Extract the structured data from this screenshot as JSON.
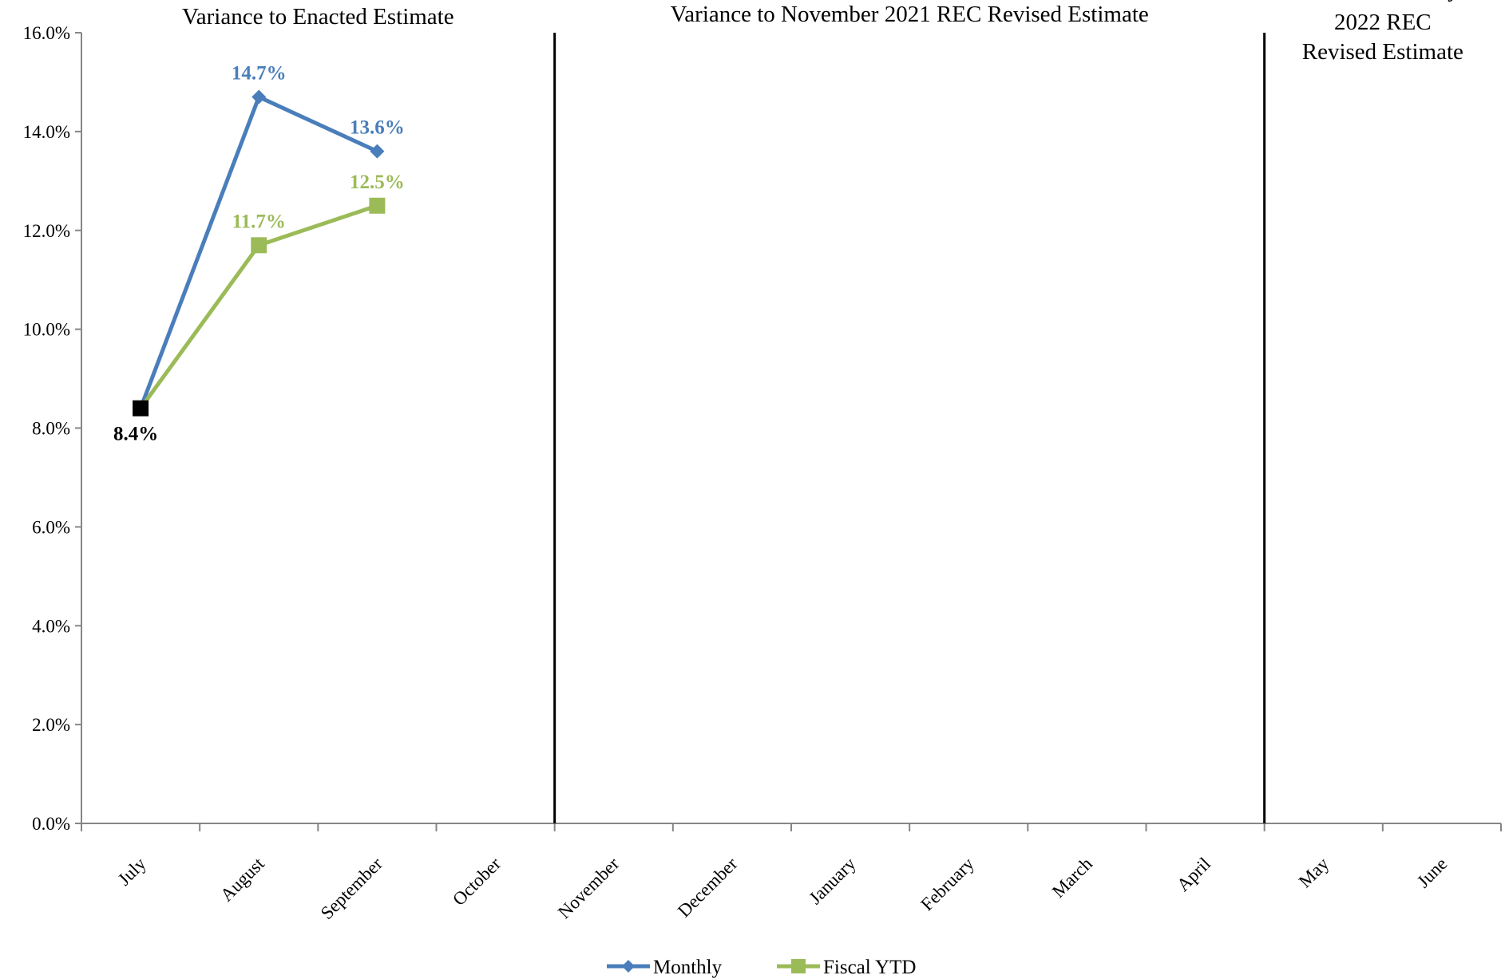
{
  "chart_data": {
    "type": "line",
    "categories": [
      "July",
      "August",
      "September",
      "October",
      "November",
      "December",
      "January",
      "February",
      "March",
      "April",
      "May",
      "June"
    ],
    "ylim": [
      0,
      16
    ],
    "y_ticks": [
      "0.0%",
      "2.0%",
      "4.0%",
      "6.0%",
      "8.0%",
      "10.0%",
      "12.0%",
      "14.0%",
      "16.0%"
    ],
    "y_tick_values": [
      0,
      2,
      4,
      6,
      8,
      10,
      12,
      14,
      16
    ],
    "grid": false,
    "legend_position": "bottom",
    "section_titles": [
      "Variance to Enacted Estimate",
      "Variance to November 2021 REC Revised Estimate",
      "Variance to May",
      "2022 REC",
      "Revised Estimate"
    ],
    "series": [
      {
        "name": "Monthly",
        "color": "#4a7ebb",
        "marker": "diamond",
        "values": [
          8.4,
          14.7,
          13.6,
          null,
          null,
          null,
          null,
          null,
          null,
          null,
          null,
          null
        ],
        "labels": [
          "",
          "14.7%",
          "13.6%",
          "",
          "",
          "",
          "",
          "",
          "",
          "",
          "",
          ""
        ]
      },
      {
        "name": "Fiscal YTD",
        "color": "#9bbb59",
        "marker": "square",
        "values": [
          8.4,
          11.7,
          12.5,
          null,
          null,
          null,
          null,
          null,
          null,
          null,
          null,
          null
        ],
        "labels": [
          "",
          "11.7%",
          "12.5%",
          "",
          "",
          "",
          "",
          "",
          "",
          "",
          "",
          ""
        ]
      }
    ],
    "shared_point": {
      "category": "July",
      "value": 8.4,
      "label": "8.4%",
      "color": "#000000"
    }
  }
}
